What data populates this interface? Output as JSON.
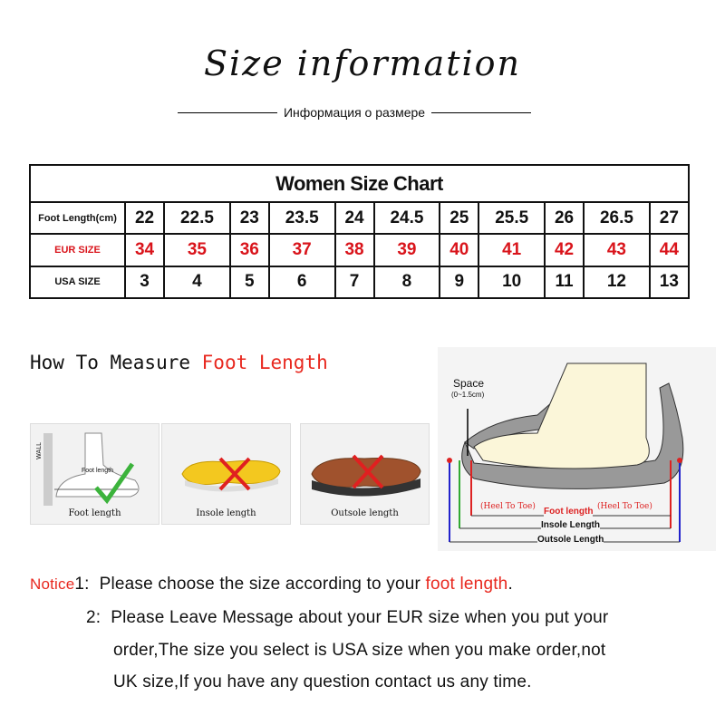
{
  "header": {
    "title": "Size information",
    "subtitle": "Информация о размере"
  },
  "size_chart": {
    "title": "Women Size Chart",
    "rows": [
      {
        "label": "Foot Length(cm)",
        "values": [
          "22",
          "22.5",
          "23",
          "23.5",
          "24",
          "24.5",
          "25",
          "25.5",
          "26",
          "26.5",
          "27"
        ]
      },
      {
        "label": "EUR SIZE",
        "values": [
          "34",
          "35",
          "36",
          "37",
          "38",
          "39",
          "40",
          "41",
          "42",
          "43",
          "44"
        ]
      },
      {
        "label": "USA SIZE",
        "values": [
          "3",
          "4",
          "5",
          "6",
          "7",
          "8",
          "9",
          "10",
          "11",
          "12",
          "13"
        ]
      }
    ]
  },
  "measure": {
    "heading_prefix": "How To Measure ",
    "heading_highlight": "Foot Length",
    "panels": [
      {
        "caption": "Foot length",
        "wall": "WALL",
        "inner": "Foot length",
        "mark": "check"
      },
      {
        "caption": "Insole length",
        "mark": "cross"
      },
      {
        "caption": "Outsole length",
        "mark": "cross"
      }
    ],
    "diagram": {
      "space": "Space",
      "space_range": "(0~1.5cm)",
      "heel_to_toe_left": "(Heel To Toe)",
      "heel_to_toe_right": "(Heel To Toe)",
      "foot_length": "Foot length",
      "insole_length": "Insole Length",
      "outsole_length": "Outsole Length"
    }
  },
  "notice": {
    "label": "Notice",
    "n1": "1:",
    "line1_pre": "Please choose the size according to your ",
    "line1_hl": "foot length",
    "line1_post": ".",
    "n2": "2:",
    "line2": "Please Leave Message about your EUR size when you put your",
    "line3": "order,The size you select is USA size when you make order,not",
    "line4": "UK size,If you have any question  contact us any time."
  },
  "colors": {
    "accent": "#e8281f",
    "text": "#111111"
  }
}
